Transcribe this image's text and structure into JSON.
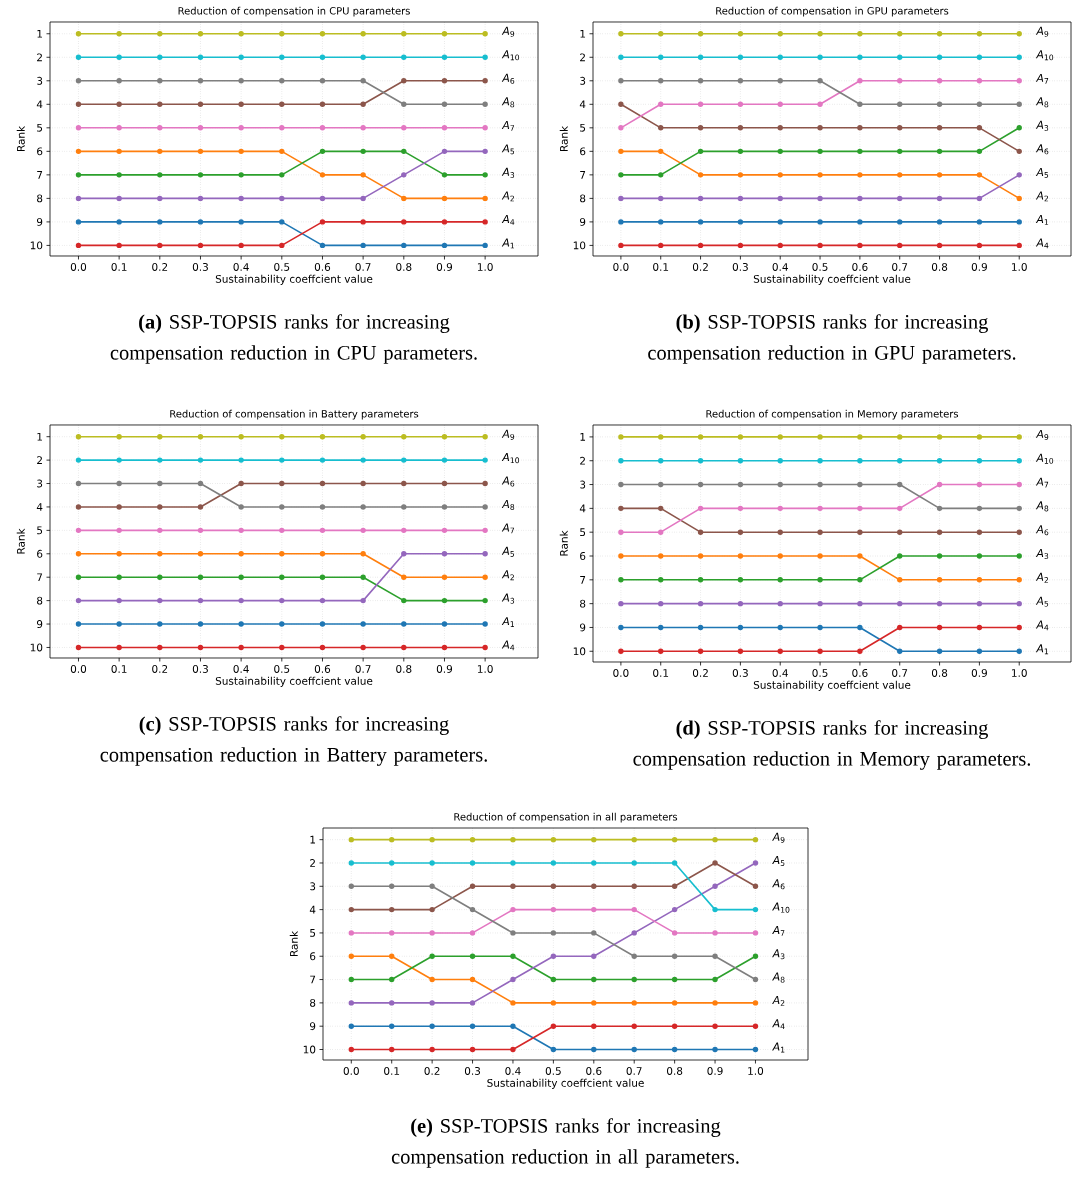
{
  "chart_data": [
    {
      "type": "line",
      "title": "Reduction of compensation in CPU parameters",
      "xlabel": "Sustainability coeffcient value",
      "ylabel": "Rank",
      "annotations": [
        "**(a)** SSP-TOPSIS ranks for increasing compensation reduction in CPU parameters."
      ],
      "x": [
        0.0,
        0.1,
        0.2,
        0.3,
        0.4,
        0.5,
        0.6,
        0.7,
        0.8,
        0.9,
        1.0
      ],
      "xlim": [
        -0.07,
        1.13
      ],
      "ylim": [
        10.45,
        0.5
      ],
      "xticks": [
        {
          "value": 0.0,
          "label": "0.0"
        },
        {
          "value": 0.1,
          "label": "0.1"
        },
        {
          "value": 0.2,
          "label": "0.2"
        },
        {
          "value": 0.3,
          "label": "0.3"
        },
        {
          "value": 0.4,
          "label": "0.4"
        },
        {
          "value": 0.5,
          "label": "0.5"
        },
        {
          "value": 0.6,
          "label": "0.6"
        },
        {
          "value": 0.7,
          "label": "0.7"
        },
        {
          "value": 0.8,
          "label": "0.8"
        },
        {
          "value": 0.9,
          "label": "0.9"
        },
        {
          "value": 1.0,
          "label": "1.0"
        }
      ],
      "yticks": [
        1,
        2,
        3,
        4,
        5,
        6,
        7,
        8,
        9,
        10
      ],
      "grid": true,
      "marker": "circle",
      "line_style": "solid",
      "series": [
        {
          "name": "*A*$_{1}$",
          "color": "#1f77b4",
          "values": [
            9,
            9,
            9,
            9,
            9,
            9,
            10,
            10,
            10,
            10,
            10
          ]
        },
        {
          "name": "*A*$_{2}$",
          "color": "#ff7f0e",
          "values": [
            6,
            6,
            6,
            6,
            6,
            6,
            7,
            7,
            8,
            8,
            8
          ]
        },
        {
          "name": "*A*$_{3}$",
          "color": "#2ca02c",
          "values": [
            7,
            7,
            7,
            7,
            7,
            7,
            6,
            6,
            6,
            7,
            7
          ]
        },
        {
          "name": "*A*$_{4}$",
          "color": "#d62728",
          "values": [
            10,
            10,
            10,
            10,
            10,
            10,
            9,
            9,
            9,
            9,
            9
          ]
        },
        {
          "name": "*A*$_{5}$",
          "color": "#9467bd",
          "values": [
            8,
            8,
            8,
            8,
            8,
            8,
            8,
            8,
            7,
            6,
            6
          ]
        },
        {
          "name": "*A*$_{6}$",
          "color": "#8c564b",
          "values": [
            4,
            4,
            4,
            4,
            4,
            4,
            4,
            4,
            3,
            3,
            3
          ]
        },
        {
          "name": "*A*$_{7}$",
          "color": "#e377c2",
          "values": [
            5,
            5,
            5,
            5,
            5,
            5,
            5,
            5,
            5,
            5,
            5
          ]
        },
        {
          "name": "*A*$_{8}$",
          "color": "#7f7f7f",
          "values": [
            3,
            3,
            3,
            3,
            3,
            3,
            3,
            3,
            4,
            4,
            4
          ]
        },
        {
          "name": "*A*$_{9}$",
          "color": "#bcbd22",
          "values": [
            1,
            1,
            1,
            1,
            1,
            1,
            1,
            1,
            1,
            1,
            1
          ]
        },
        {
          "name": "*A*$_{10}$",
          "color": "#17becf",
          "values": [
            2,
            2,
            2,
            2,
            2,
            2,
            2,
            2,
            2,
            2,
            2
          ]
        }
      ]
    },
    {
      "type": "line",
      "title": "Reduction of compensation in GPU parameters",
      "xlabel": "Sustainability coeffcient value",
      "ylabel": "Rank",
      "annotations": [
        "**(b)** SSP-TOPSIS ranks for increasing compensation reduction in GPU parameters."
      ],
      "x": [
        0.0,
        0.1,
        0.2,
        0.3,
        0.4,
        0.5,
        0.6,
        0.7,
        0.8,
        0.9,
        1.0
      ],
      "xlim": [
        -0.07,
        1.13
      ],
      "ylim": [
        10.45,
        0.5
      ],
      "xticks": [
        {
          "value": 0.0,
          "label": "0.0"
        },
        {
          "value": 0.1,
          "label": "0.1"
        },
        {
          "value": 0.2,
          "label": "0.2"
        },
        {
          "value": 0.3,
          "label": "0.3"
        },
        {
          "value": 0.4,
          "label": "0.4"
        },
        {
          "value": 0.5,
          "label": "0.5"
        },
        {
          "value": 0.6,
          "label": "0.6"
        },
        {
          "value": 0.7,
          "label": "0.7"
        },
        {
          "value": 0.8,
          "label": "0.8"
        },
        {
          "value": 0.9,
          "label": "0.9"
        },
        {
          "value": 1.0,
          "label": "1.0"
        }
      ],
      "yticks": [
        1,
        2,
        3,
        4,
        5,
        6,
        7,
        8,
        9,
        10
      ],
      "grid": true,
      "marker": "circle",
      "line_style": "solid",
      "series": [
        {
          "name": "*A*$_{1}$",
          "color": "#1f77b4",
          "values": [
            9,
            9,
            9,
            9,
            9,
            9,
            9,
            9,
            9,
            9,
            9
          ]
        },
        {
          "name": "*A*$_{2}$",
          "color": "#ff7f0e",
          "values": [
            6,
            6,
            7,
            7,
            7,
            7,
            7,
            7,
            7,
            7,
            8
          ]
        },
        {
          "name": "*A*$_{3}$",
          "color": "#2ca02c",
          "values": [
            7,
            7,
            6,
            6,
            6,
            6,
            6,
            6,
            6,
            6,
            5
          ]
        },
        {
          "name": "*A*$_{4}$",
          "color": "#d62728",
          "values": [
            10,
            10,
            10,
            10,
            10,
            10,
            10,
            10,
            10,
            10,
            10
          ]
        },
        {
          "name": "*A*$_{5}$",
          "color": "#9467bd",
          "values": [
            8,
            8,
            8,
            8,
            8,
            8,
            8,
            8,
            8,
            8,
            7
          ]
        },
        {
          "name": "*A*$_{6}$",
          "color": "#8c564b",
          "values": [
            4,
            5,
            5,
            5,
            5,
            5,
            5,
            5,
            5,
            5,
            6
          ]
        },
        {
          "name": "*A*$_{7}$",
          "color": "#e377c2",
          "values": [
            5,
            4,
            4,
            4,
            4,
            4,
            3,
            3,
            3,
            3,
            3
          ]
        },
        {
          "name": "*A*$_{8}$",
          "color": "#7f7f7f",
          "values": [
            3,
            3,
            3,
            3,
            3,
            3,
            4,
            4,
            4,
            4,
            4
          ]
        },
        {
          "name": "*A*$_{9}$",
          "color": "#bcbd22",
          "values": [
            1,
            1,
            1,
            1,
            1,
            1,
            1,
            1,
            1,
            1,
            1
          ]
        },
        {
          "name": "*A*$_{10}$",
          "color": "#17becf",
          "values": [
            2,
            2,
            2,
            2,
            2,
            2,
            2,
            2,
            2,
            2,
            2
          ]
        }
      ]
    },
    {
      "type": "line",
      "title": "Reduction of compensation in Battery parameters",
      "xlabel": "Sustainability coeffcient value",
      "ylabel": "Rank",
      "annotations": [
        "**(c)** SSP-TOPSIS ranks for increasing compensation reduction in Battery parameters."
      ],
      "x": [
        0.0,
        0.1,
        0.2,
        0.3,
        0.4,
        0.5,
        0.6,
        0.7,
        0.8,
        0.9,
        1.0
      ],
      "xlim": [
        -0.07,
        1.13
      ],
      "ylim": [
        10.45,
        0.5
      ],
      "xticks": [
        {
          "value": 0.0,
          "label": "0.0"
        },
        {
          "value": 0.1,
          "label": "0.1"
        },
        {
          "value": 0.2,
          "label": "0.2"
        },
        {
          "value": 0.3,
          "label": "0.3"
        },
        {
          "value": 0.4,
          "label": "0.4"
        },
        {
          "value": 0.5,
          "label": "0.5"
        },
        {
          "value": 0.6,
          "label": "0.6"
        },
        {
          "value": 0.7,
          "label": "0.7"
        },
        {
          "value": 0.8,
          "label": "0.8"
        },
        {
          "value": 0.9,
          "label": "0.9"
        },
        {
          "value": 1.0,
          "label": "1.0"
        }
      ],
      "yticks": [
        1,
        2,
        3,
        4,
        5,
        6,
        7,
        8,
        9,
        10
      ],
      "grid": true,
      "marker": "circle",
      "line_style": "solid",
      "series": [
        {
          "name": "*A*$_{1}$",
          "color": "#1f77b4",
          "values": [
            9,
            9,
            9,
            9,
            9,
            9,
            9,
            9,
            9,
            9,
            9
          ]
        },
        {
          "name": "*A*$_{2}$",
          "color": "#ff7f0e",
          "values": [
            6,
            6,
            6,
            6,
            6,
            6,
            6,
            6,
            7,
            7,
            7
          ]
        },
        {
          "name": "*A*$_{3}$",
          "color": "#2ca02c",
          "values": [
            7,
            7,
            7,
            7,
            7,
            7,
            7,
            7,
            8,
            8,
            8
          ]
        },
        {
          "name": "*A*$_{4}$",
          "color": "#d62728",
          "values": [
            10,
            10,
            10,
            10,
            10,
            10,
            10,
            10,
            10,
            10,
            10
          ]
        },
        {
          "name": "*A*$_{5}$",
          "color": "#9467bd",
          "values": [
            8,
            8,
            8,
            8,
            8,
            8,
            8,
            8,
            6,
            6,
            6
          ]
        },
        {
          "name": "*A*$_{6}$",
          "color": "#8c564b",
          "values": [
            4,
            4,
            4,
            4,
            3,
            3,
            3,
            3,
            3,
            3,
            3
          ]
        },
        {
          "name": "*A*$_{7}$",
          "color": "#e377c2",
          "values": [
            5,
            5,
            5,
            5,
            5,
            5,
            5,
            5,
            5,
            5,
            5
          ]
        },
        {
          "name": "*A*$_{8}$",
          "color": "#7f7f7f",
          "values": [
            3,
            3,
            3,
            3,
            4,
            4,
            4,
            4,
            4,
            4,
            4
          ]
        },
        {
          "name": "*A*$_{9}$",
          "color": "#bcbd22",
          "values": [
            1,
            1,
            1,
            1,
            1,
            1,
            1,
            1,
            1,
            1,
            1
          ]
        },
        {
          "name": "*A*$_{10}$",
          "color": "#17becf",
          "values": [
            2,
            2,
            2,
            2,
            2,
            2,
            2,
            2,
            2,
            2,
            2
          ]
        }
      ]
    },
    {
      "type": "line",
      "title": "Reduction of compensation in Memory parameters",
      "xlabel": "Sustainability coeffcient value",
      "ylabel": "Rank",
      "annotations": [
        "**(d)** SSP-TOPSIS ranks for increasing compensation reduction in Memory parameters."
      ],
      "x": [
        0.0,
        0.1,
        0.2,
        0.3,
        0.4,
        0.5,
        0.6,
        0.7,
        0.8,
        0.9,
        1.0
      ],
      "xlim": [
        -0.07,
        1.13
      ],
      "ylim": [
        10.45,
        0.5
      ],
      "xticks": [
        {
          "value": 0.0,
          "label": "0.0"
        },
        {
          "value": 0.1,
          "label": "0.1"
        },
        {
          "value": 0.2,
          "label": "0.2"
        },
        {
          "value": 0.3,
          "label": "0.3"
        },
        {
          "value": 0.4,
          "label": "0.4"
        },
        {
          "value": 0.5,
          "label": "0.5"
        },
        {
          "value": 0.6,
          "label": "0.6"
        },
        {
          "value": 0.7,
          "label": "0.7"
        },
        {
          "value": 0.8,
          "label": "0.8"
        },
        {
          "value": 0.9,
          "label": "0.9"
        },
        {
          "value": 1.0,
          "label": "1.0"
        }
      ],
      "yticks": [
        1,
        2,
        3,
        4,
        5,
        6,
        7,
        8,
        9,
        10
      ],
      "grid": true,
      "marker": "circle",
      "line_style": "solid",
      "series": [
        {
          "name": "*A*$_{1}$",
          "color": "#1f77b4",
          "values": [
            9,
            9,
            9,
            9,
            9,
            9,
            9,
            10,
            10,
            10,
            10
          ]
        },
        {
          "name": "*A*$_{2}$",
          "color": "#ff7f0e",
          "values": [
            6,
            6,
            6,
            6,
            6,
            6,
            6,
            7,
            7,
            7,
            7
          ]
        },
        {
          "name": "*A*$_{3}$",
          "color": "#2ca02c",
          "values": [
            7,
            7,
            7,
            7,
            7,
            7,
            7,
            6,
            6,
            6,
            6
          ]
        },
        {
          "name": "*A*$_{4}$",
          "color": "#d62728",
          "values": [
            10,
            10,
            10,
            10,
            10,
            10,
            10,
            9,
            9,
            9,
            9
          ]
        },
        {
          "name": "*A*$_{5}$",
          "color": "#9467bd",
          "values": [
            8,
            8,
            8,
            8,
            8,
            8,
            8,
            8,
            8,
            8,
            8
          ]
        },
        {
          "name": "*A*$_{6}$",
          "color": "#8c564b",
          "values": [
            4,
            4,
            5,
            5,
            5,
            5,
            5,
            5,
            5,
            5,
            5
          ]
        },
        {
          "name": "*A*$_{7}$",
          "color": "#e377c2",
          "values": [
            5,
            5,
            4,
            4,
            4,
            4,
            4,
            4,
            3,
            3,
            3
          ]
        },
        {
          "name": "*A*$_{8}$",
          "color": "#7f7f7f",
          "values": [
            3,
            3,
            3,
            3,
            3,
            3,
            3,
            3,
            4,
            4,
            4
          ]
        },
        {
          "name": "*A*$_{9}$",
          "color": "#bcbd22",
          "values": [
            1,
            1,
            1,
            1,
            1,
            1,
            1,
            1,
            1,
            1,
            1
          ]
        },
        {
          "name": "*A*$_{10}$",
          "color": "#17becf",
          "values": [
            2,
            2,
            2,
            2,
            2,
            2,
            2,
            2,
            2,
            2,
            2
          ]
        }
      ]
    },
    {
      "type": "line",
      "title": "Reduction of compensation in all parameters",
      "xlabel": "Sustainability coeffcient value",
      "ylabel": "Rank",
      "annotations": [
        "**(e)** SSP-TOPSIS ranks for increasing compensation reduction in all parameters."
      ],
      "x": [
        0.0,
        0.1,
        0.2,
        0.3,
        0.4,
        0.5,
        0.6,
        0.7,
        0.8,
        0.9,
        1.0
      ],
      "xlim": [
        -0.07,
        1.13
      ],
      "ylim": [
        10.45,
        0.5
      ],
      "xticks": [
        {
          "value": 0.0,
          "label": "0.0"
        },
        {
          "value": 0.1,
          "label": "0.1"
        },
        {
          "value": 0.2,
          "label": "0.2"
        },
        {
          "value": 0.3,
          "label": "0.3"
        },
        {
          "value": 0.4,
          "label": "0.4"
        },
        {
          "value": 0.5,
          "label": "0.5"
        },
        {
          "value": 0.6,
          "label": "0.6"
        },
        {
          "value": 0.7,
          "label": "0.7"
        },
        {
          "value": 0.8,
          "label": "0.8"
        },
        {
          "value": 0.9,
          "label": "0.9"
        },
        {
          "value": 1.0,
          "label": "1.0"
        }
      ],
      "yticks": [
        1,
        2,
        3,
        4,
        5,
        6,
        7,
        8,
        9,
        10
      ],
      "grid": true,
      "marker": "circle",
      "line_style": "solid",
      "series": [
        {
          "name": "*A*$_{1}$",
          "color": "#1f77b4",
          "values": [
            9,
            9,
            9,
            9,
            9,
            10,
            10,
            10,
            10,
            10,
            10
          ]
        },
        {
          "name": "*A*$_{2}$",
          "color": "#ff7f0e",
          "values": [
            6,
            6,
            7,
            7,
            8,
            8,
            8,
            8,
            8,
            8,
            8
          ]
        },
        {
          "name": "*A*$_{3}$",
          "color": "#2ca02c",
          "values": [
            7,
            7,
            6,
            6,
            6,
            7,
            7,
            7,
            7,
            7,
            6
          ]
        },
        {
          "name": "*A*$_{4}$",
          "color": "#d62728",
          "values": [
            10,
            10,
            10,
            10,
            10,
            9,
            9,
            9,
            9,
            9,
            9
          ]
        },
        {
          "name": "*A*$_{5}$",
          "color": "#9467bd",
          "values": [
            8,
            8,
            8,
            8,
            7,
            6,
            6,
            5,
            4,
            3,
            2
          ]
        },
        {
          "name": "*A*$_{6}$",
          "color": "#8c564b",
          "values": [
            4,
            4,
            4,
            3,
            3,
            3,
            3,
            3,
            3,
            2,
            3
          ]
        },
        {
          "name": "*A*$_{7}$",
          "color": "#e377c2",
          "values": [
            5,
            5,
            5,
            5,
            4,
            4,
            4,
            4,
            5,
            5,
            5
          ]
        },
        {
          "name": "*A*$_{8}$",
          "color": "#7f7f7f",
          "values": [
            3,
            3,
            3,
            4,
            5,
            5,
            5,
            6,
            6,
            6,
            7
          ]
        },
        {
          "name": "*A*$_{9}$",
          "color": "#bcbd22",
          "values": [
            1,
            1,
            1,
            1,
            1,
            1,
            1,
            1,
            1,
            1,
            1
          ]
        },
        {
          "name": "*A*$_{10}$",
          "color": "#17becf",
          "values": [
            2,
            2,
            2,
            2,
            2,
            2,
            2,
            2,
            2,
            4,
            4
          ]
        }
      ]
    }
  ]
}
